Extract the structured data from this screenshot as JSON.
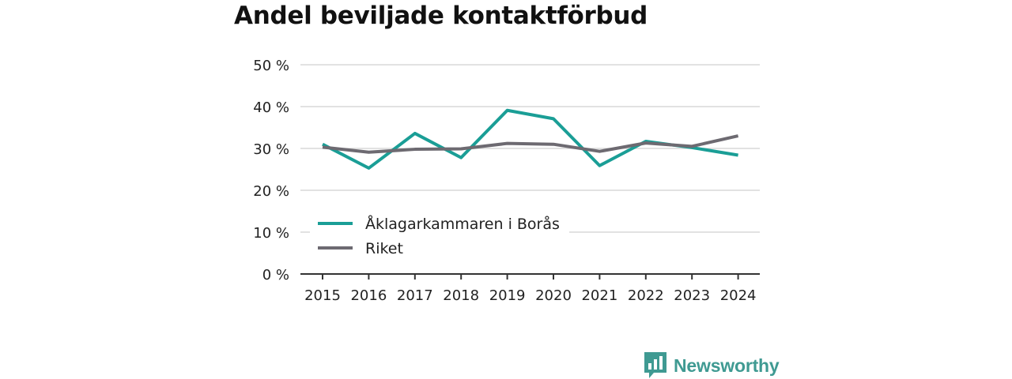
{
  "chart_data": {
    "type": "line",
    "title": "Andel beviljade kontaktförbud",
    "x": [
      2015,
      2016,
      2017,
      2018,
      2019,
      2020,
      2021,
      2022,
      2023,
      2024
    ],
    "x_labels": [
      "2015",
      "2016",
      "2017",
      "2018",
      "2019",
      "2020",
      "2021",
      "2022",
      "2023",
      "2024"
    ],
    "series": [
      {
        "name": "Åklagarkammaren i Borås",
        "color": "#1a9e96",
        "values": [
          31,
          25.3,
          33.6,
          27.8,
          39.1,
          37.1,
          25.9,
          31.7,
          30.2,
          28.4
        ]
      },
      {
        "name": "Riket",
        "color": "#6d6a71",
        "values": [
          30.3,
          29.1,
          29.8,
          29.9,
          31.2,
          31.0,
          29.3,
          31.3,
          30.5,
          33.0
        ]
      }
    ],
    "ylim": [
      0,
      50
    ],
    "yticks": [
      0,
      10,
      20,
      30,
      40,
      50
    ],
    "ytick_labels": [
      "0 %",
      "10 %",
      "20 %",
      "30 %",
      "40 %",
      "50 %"
    ],
    "grid": true,
    "legend_position": "lower-left"
  },
  "brand": {
    "name": "Newsworthy",
    "color": "#3f9a92",
    "icon": "newsworthy-logo-icon"
  }
}
